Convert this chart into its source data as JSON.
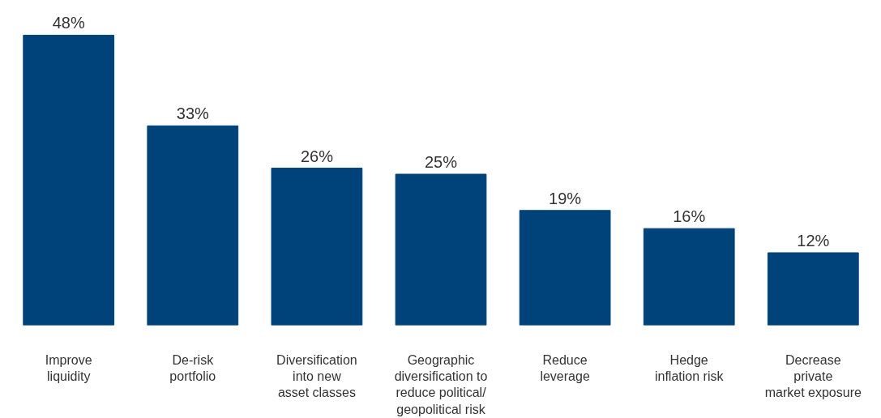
{
  "chart_data": {
    "type": "bar",
    "categories": [
      "Improve\nliquidity",
      "De-risk\nportfolio",
      "Diversification\ninto new\nasset classes",
      "Geographic\ndiversification to\nreduce political/\ngeopolitical risk",
      "Reduce\nleverage",
      "Hedge\ninflation risk",
      "Decrease\nprivate\nmarket exposure"
    ],
    "values": [
      48,
      33,
      26,
      25,
      19,
      16,
      12
    ],
    "value_labels": [
      "48%",
      "33%",
      "26%",
      "25%",
      "19%",
      "16%",
      "12%"
    ],
    "color": "#00427a",
    "grid": false
  }
}
